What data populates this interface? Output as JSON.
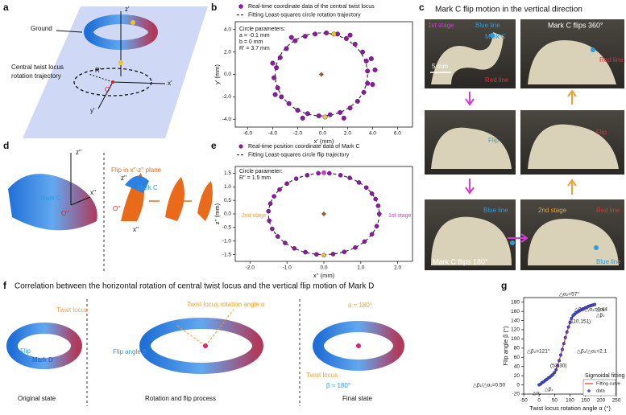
{
  "panel_letters": [
    "a",
    "b",
    "c",
    "d",
    "e",
    "f",
    "g"
  ],
  "panel_a": {
    "ground": "Ground",
    "z_axis": "z'",
    "trajectory": [
      "Central twist locus",
      "rotation trajectory"
    ],
    "radius": "R'",
    "origin": "O'",
    "x_axis": "x'",
    "y_axis": "y'"
  },
  "panel_c": {
    "title": "Mark C flip motion in the vertical direction",
    "labels": [
      "1st stage",
      "Blue line",
      "Mark C",
      "Red line",
      "5 mm",
      "Mark C flips 360°",
      "Red line",
      "Flip",
      "Flip",
      "Blue line",
      "2nd stage",
      "Red line",
      "Mark C flips 180°",
      "Blue line"
    ]
  },
  "panel_d": {
    "labels": [
      "z''",
      "Mark C",
      "O''",
      "x''",
      "Flip in x''-z'' plane",
      "z''",
      "Mark C",
      "O''",
      "x''"
    ]
  },
  "panel_f": {
    "title": "Correlation between the horizontal rotation of central twist locus and the vertical flip motion of Mark D",
    "labels": [
      "Twist locus",
      "Flip",
      "Mark D",
      "Original state",
      "Twist locus rotation angle α",
      "Flip angle β",
      "Rotation and flip process",
      "α ≈ 180°",
      "Twist locus",
      "β ≈ 180°",
      "Final state"
    ]
  },
  "chart_data": [
    {
      "type": "scatter",
      "x_label": "x' (mm)",
      "y_label": "y' (mm)",
      "xlim": [
        -7,
        7.2
      ],
      "ylim": [
        -4.7,
        4.7
      ],
      "xticks": [
        {
          "value": -6,
          "label": "-6.0"
        },
        {
          "value": -4,
          "label": "-4.0"
        },
        {
          "value": -2,
          "label": "-2.0"
        },
        {
          "value": 0,
          "label": "0.0"
        },
        {
          "value": 2,
          "label": "2.0"
        },
        {
          "value": 4,
          "label": "4.0"
        },
        {
          "value": 6,
          "label": "6.0"
        }
      ],
      "yticks": [
        {
          "value": -4,
          "label": "-4.0"
        },
        {
          "value": -2,
          "label": "-2.0"
        },
        {
          "value": 0,
          "label": "0.0"
        },
        {
          "value": 2,
          "label": "2.0"
        },
        {
          "value": 4,
          "label": "4.0"
        }
      ],
      "annotations": [
        "Circle parameters:",
        "a = -0.1 mm",
        "b = 0 mm",
        "R' = 3.7 mm"
      ],
      "fit": {
        "name": "Fitting Least-squares circle rotation trajectory",
        "color": "#333333",
        "center_x": -0.1,
        "center_y": 0,
        "r": 3.7
      },
      "series": [
        {
          "name": "Real-time coordinate data of the central twist locus",
          "color": "#8b1a9e",
          "x": [
            3.6,
            3.5,
            3.2,
            2.6,
            1.9,
            1.2,
            0.3,
            -0.6,
            -1.4,
            -2.2,
            -2.9,
            -3.4,
            -3.7,
            -3.9,
            -3.6,
            -3.3,
            -2.7,
            -2.0,
            -1.2,
            -0.3,
            0.6,
            1.4,
            2.2,
            2.8,
            3.3,
            3.6,
            4.0,
            3.9,
            2.2,
            -2.5,
            -4.0,
            -3.8,
            -1.6,
            1.7,
            4.2
          ],
          "values": [
            0.3,
            1.2,
            2.0,
            2.7,
            3.2,
            3.6,
            3.7,
            3.6,
            3.4,
            3.0,
            2.3,
            1.5,
            0.6,
            -0.3,
            -1.2,
            -2.0,
            -2.6,
            -3.2,
            -3.5,
            -3.7,
            -3.6,
            -3.4,
            -3.0,
            -2.4,
            -1.6,
            -0.8,
            -0.9,
            1.4,
            3.5,
            3.3,
            1.0,
            -1.8,
            -3.9,
            -3.9,
            0.4
          ]
        },
        {
          "color": "#f2c230",
          "x": [
            0.9,
            0.2
          ],
          "values": [
            3.6,
            -3.8
          ]
        }
      ]
    },
    {
      "type": "scatter",
      "x_label": "x'' (mm)",
      "y_label": "z'' (mm)",
      "xlim": [
        -2.4,
        2.4
      ],
      "ylim": [
        -1.75,
        1.75
      ],
      "xticks": [
        {
          "value": -2,
          "label": "-2.0"
        },
        {
          "value": -1,
          "label": "-1.0"
        },
        {
          "value": 0,
          "label": "0.0"
        },
        {
          "value": 1,
          "label": "1.0"
        },
        {
          "value": 2,
          "label": "2.0"
        }
      ],
      "yticks": [
        {
          "value": -1.5,
          "label": "-1.5"
        },
        {
          "value": -1,
          "label": "-1.0"
        },
        {
          "value": -0.5,
          "label": "-0.5"
        },
        {
          "value": 0,
          "label": "0.0"
        },
        {
          "value": 0.5,
          "label": "0.5"
        },
        {
          "value": 1,
          "label": "1.0"
        },
        {
          "value": 1.5,
          "label": "1.5"
        }
      ],
      "annotations": [
        "Circle parameter:",
        "R'' = 1.5 mm",
        "2nd stage",
        "1st stage"
      ],
      "fit": {
        "name": "Fitting Least-squares circle flip trajectory",
        "color": "#333333",
        "center_x": 0,
        "center_y": 0,
        "r": 1.5
      },
      "series": [
        {
          "name": "Real-time position coordinate data of Mark C",
          "color": "#8b1a9e",
          "x": [
            1.5,
            1.47,
            1.4,
            1.3,
            1.15,
            0.95,
            0.7,
            0.45,
            0.15,
            -0.15,
            -0.45,
            -0.75,
            -1.0,
            -1.2,
            -1.35,
            -1.45,
            -1.5,
            -1.48,
            -1.4,
            -1.25,
            -1.05,
            -0.8,
            -0.5,
            -0.2,
            0.25,
            0.55,
            0.85,
            1.1,
            1.3,
            1.43
          ],
          "values": [
            0,
            0.3,
            0.55,
            0.75,
            0.97,
            1.16,
            1.33,
            1.43,
            1.5,
            1.5,
            1.43,
            1.3,
            1.12,
            0.9,
            0.65,
            0.38,
            0.1,
            -0.25,
            -0.55,
            -0.83,
            -1.07,
            -1.27,
            -1.41,
            -1.49,
            -1.48,
            -1.4,
            -1.24,
            -1.02,
            -0.75,
            -0.45
          ]
        },
        {
          "color": "#d63ad8",
          "x": [
            0
          ],
          "values": [
            1.52
          ]
        },
        {
          "color": "#f2c230",
          "x": [
            0
          ],
          "values": [
            -1.52
          ]
        }
      ]
    },
    {
      "type": "scatter",
      "x_label": "Twist locus rotation angle α (°)",
      "y_label": "Flip angle β (°)",
      "xlim": [
        -50,
        250
      ],
      "ylim": [
        -20,
        190
      ],
      "xticks": [
        -50,
        0,
        50,
        100,
        150,
        200,
        250
      ],
      "yticks": [
        -20,
        0,
        20,
        40,
        60,
        80,
        100,
        120,
        140,
        160,
        180
      ],
      "annotations": [
        "△β₁/△α₁=0.50",
        "(53,30)",
        "△β₂=121°",
        "△α₂=57°",
        "△β₂/△α₂=2.1",
        "(110,151)",
        "△β₃/△α₃=0.44",
        "Sigmoidal fitting",
        "△α₁",
        "△β₁",
        "△α₃",
        "△β₃"
      ],
      "series": [
        {
          "name": "Fitting curve",
          "color": "#e8312a",
          "type": "line",
          "x": [
            0,
            10,
            20,
            30,
            40,
            50,
            60,
            70,
            80,
            90,
            100,
            110,
            120,
            130,
            140,
            150,
            160,
            170,
            180
          ],
          "values": [
            0,
            5,
            10,
            15,
            20,
            27,
            42,
            65,
            90,
            115,
            136,
            151,
            157,
            161,
            165,
            168,
            171,
            173,
            175
          ]
        },
        {
          "name": "data",
          "color": "#3a4fd8",
          "x": [
            0,
            5,
            10,
            15,
            20,
            25,
            30,
            35,
            40,
            45,
            50,
            55,
            60,
            65,
            70,
            75,
            80,
            85,
            90,
            95,
            100,
            105,
            110,
            115,
            120,
            125,
            130,
            135,
            140,
            145,
            150,
            155,
            160,
            165,
            170,
            175,
            180
          ],
          "values": [
            0,
            2,
            5,
            7,
            10,
            12,
            15,
            17,
            20,
            23,
            27,
            33,
            42,
            53,
            65,
            77,
            90,
            103,
            115,
            126,
            136,
            145,
            151,
            154,
            157,
            159,
            161,
            163,
            165,
            166,
            168,
            169,
            171,
            172,
            173,
            174,
            175
          ]
        }
      ]
    }
  ]
}
